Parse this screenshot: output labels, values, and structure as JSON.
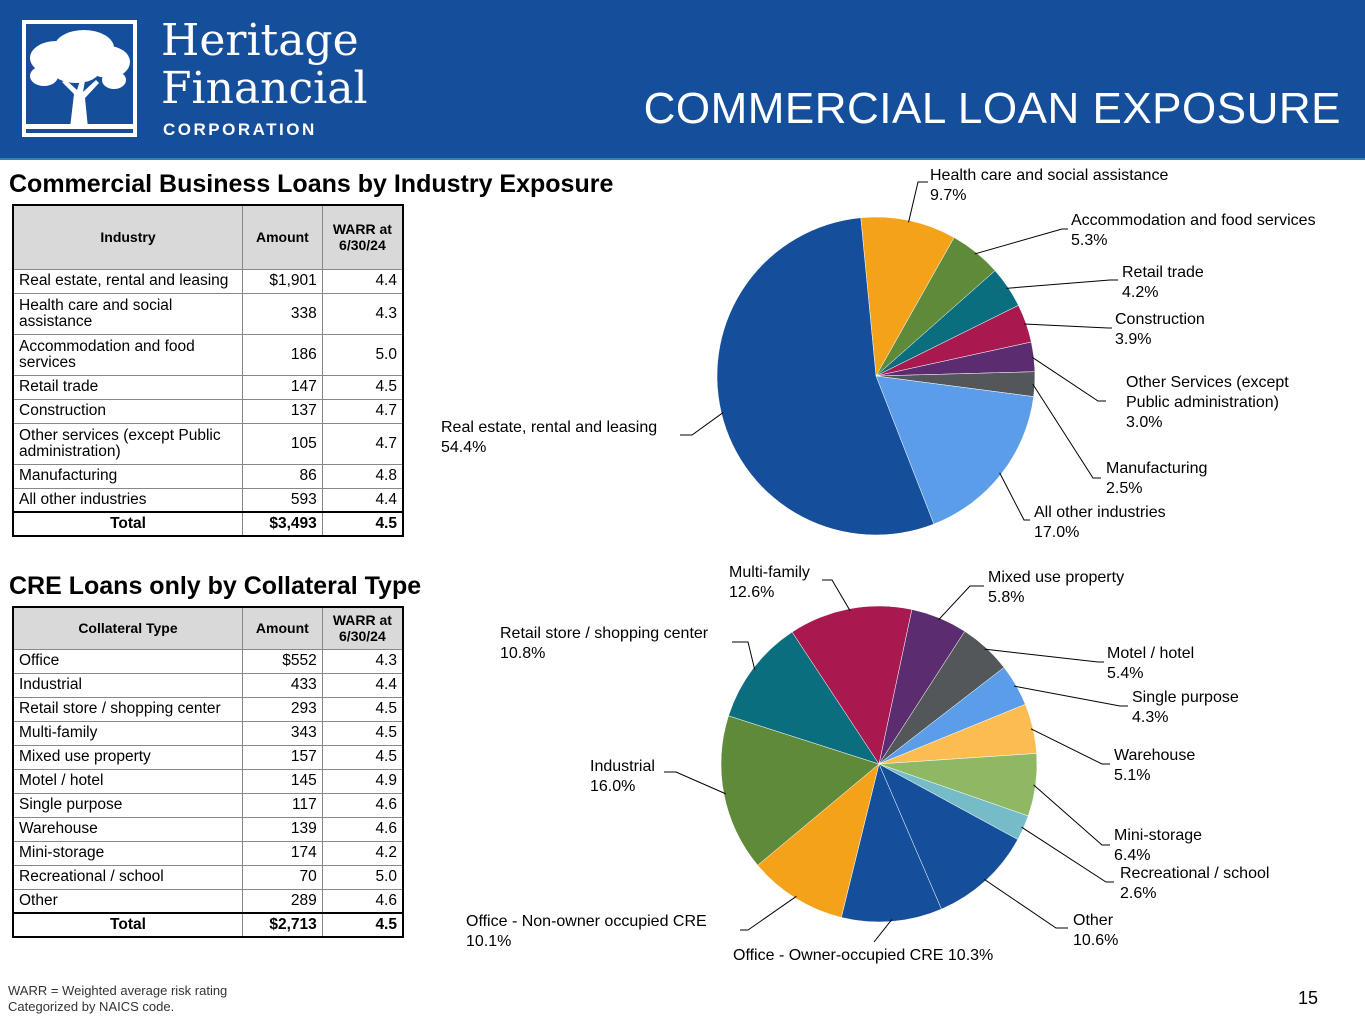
{
  "header": {
    "brand_line1": "Heritage",
    "brand_line2": "Financial",
    "brand_line3": "CORPORATION",
    "title": "COMMERCIAL LOAN EXPOSURE",
    "logo_icon": "tree-icon",
    "color": "#154f9b"
  },
  "section1": {
    "title": "Commercial Business Loans by Industry Exposure",
    "columns": [
      "Industry",
      "Amount",
      "WARR at 6/30/24"
    ],
    "rows": [
      {
        "label": "Real estate, rental and leasing",
        "amount": "$1,901",
        "warr": "4.4"
      },
      {
        "label": "Health care and social assistance",
        "amount": "338",
        "warr": "4.3"
      },
      {
        "label": "Accommodation and food services",
        "amount": "186",
        "warr": "5.0"
      },
      {
        "label": "Retail trade",
        "amount": "147",
        "warr": "4.5"
      },
      {
        "label": "Construction",
        "amount": "137",
        "warr": "4.7"
      },
      {
        "label": "Other services (except Public administration)",
        "amount": "105",
        "warr": "4.7"
      },
      {
        "label": "Manufacturing",
        "amount": "86",
        "warr": "4.8"
      },
      {
        "label": "All other industries",
        "amount": "593",
        "warr": "4.4"
      }
    ],
    "total": {
      "label": "Total",
      "amount": "$3,493",
      "warr": "4.5"
    }
  },
  "section2": {
    "title": "CRE Loans only by Collateral Type",
    "columns": [
      "Collateral Type",
      "Amount",
      "WARR at 6/30/24"
    ],
    "rows": [
      {
        "label": "Office",
        "amount": "$552",
        "warr": "4.3"
      },
      {
        "label": "Industrial",
        "amount": "433",
        "warr": "4.4"
      },
      {
        "label": "Retail store / shopping center",
        "amount": "293",
        "warr": "4.5"
      },
      {
        "label": "Multi-family",
        "amount": "343",
        "warr": "4.5"
      },
      {
        "label": "Mixed use property",
        "amount": "157",
        "warr": "4.5"
      },
      {
        "label": "Motel / hotel",
        "amount": "145",
        "warr": "4.9"
      },
      {
        "label": "Single purpose",
        "amount": "117",
        "warr": "4.6"
      },
      {
        "label": "Warehouse",
        "amount": "139",
        "warr": "4.6"
      },
      {
        "label": "Mini-storage",
        "amount": "174",
        "warr": "4.2"
      },
      {
        "label": "Recreational / school",
        "amount": "70",
        "warr": "5.0"
      },
      {
        "label": "Other",
        "amount": "289",
        "warr": "4.6"
      }
    ],
    "total": {
      "label": "Total",
      "amount": "$2,713",
      "warr": "4.5"
    }
  },
  "chart_data": [
    {
      "type": "pie",
      "title": "",
      "start_angle_deg": -5.5,
      "slices": [
        {
          "label": "Health care and social assistance",
          "pct_text": "9.7%",
          "value": 9.7,
          "color": "#f5a21b"
        },
        {
          "label": "Accommodation and food services",
          "pct_text": "5.3%",
          "value": 5.3,
          "color": "#5e8a3a"
        },
        {
          "label": "Retail trade",
          "pct_text": "4.2%",
          "value": 4.2,
          "color": "#0b6e7f"
        },
        {
          "label": "Construction",
          "pct_text": "3.9%",
          "value": 3.9,
          "color": "#a8194f"
        },
        {
          "label": "Other Services (except Public administration)",
          "pct_text": "3.0%",
          "value": 3.0,
          "color": "#5b2c6f"
        },
        {
          "label": "Manufacturing",
          "pct_text": "2.5%",
          "value": 2.5,
          "color": "#545759"
        },
        {
          "label": "All other industries",
          "pct_text": "17.0%",
          "value": 17.0,
          "color": "#5b9de8"
        },
        {
          "label": "Real estate, rental and leasing",
          "pct_text": "54.4%",
          "value": 54.4,
          "color": "#154f9b"
        }
      ]
    },
    {
      "type": "pie",
      "title": "",
      "start_angle_deg": 12,
      "slices": [
        {
          "label": "Mixed use property",
          "pct_text": "5.8%",
          "value": 5.8,
          "color": "#5b2c6f"
        },
        {
          "label": "Motel / hotel",
          "pct_text": "5.4%",
          "value": 5.4,
          "color": "#545759"
        },
        {
          "label": "Single purpose",
          "pct_text": "4.3%",
          "value": 4.3,
          "color": "#5b9de8"
        },
        {
          "label": "Warehouse",
          "pct_text": "5.1%",
          "value": 5.1,
          "color": "#fbbd52"
        },
        {
          "label": "Mini-storage",
          "pct_text": "6.4%",
          "value": 6.4,
          "color": "#8fb865"
        },
        {
          "label": "Recreational / school",
          "pct_text": "2.6%",
          "value": 2.6,
          "color": "#76bcc8"
        },
        {
          "label": "Other",
          "pct_text": "10.6%",
          "value": 10.6,
          "color": "#154f9b"
        },
        {
          "label": "Office - Owner-occupied CRE",
          "pct_text": "10.3%",
          "value": 10.3,
          "color": "#154f9b"
        },
        {
          "label": "Office - Non-owner occupied CRE",
          "pct_text": "10.1%",
          "value": 10.1,
          "color": "#f5a21b"
        },
        {
          "label": "Industrial",
          "pct_text": "16.0%",
          "value": 16.0,
          "color": "#5e8a3a"
        },
        {
          "label": "Retail store / shopping center",
          "pct_text": "10.8%",
          "value": 10.8,
          "color": "#0b6e7f"
        },
        {
          "label": "Multi-family",
          "pct_text": "12.6%",
          "value": 12.6,
          "color": "#a8194f"
        }
      ]
    }
  ],
  "footer": {
    "note1": "WARR = Weighted average risk rating",
    "note2": "Categorized by NAICS code.",
    "page_number": "15"
  }
}
